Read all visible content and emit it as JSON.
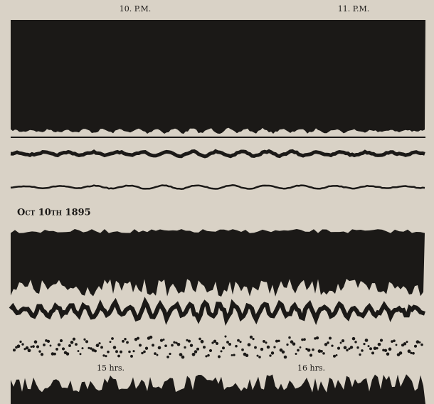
{
  "labels": {
    "top_left": "10. P.M.",
    "top_right": "11. P.M.",
    "date": "Oct 10th 1895",
    "bottom_left": "15 hrs.",
    "bottom_right": "16 hrs."
  }
}
